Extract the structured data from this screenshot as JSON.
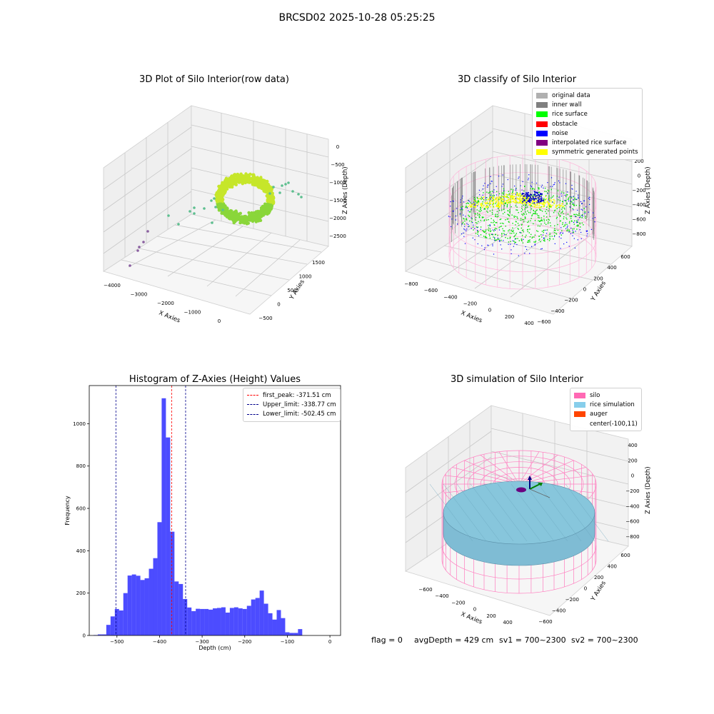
{
  "suptitle": "BRCSD02 2025-10-28 05:25:25",
  "footer": {
    "flag": "flag = 0",
    "avg_depth": "avgDepth = 429 cm",
    "sv1": "sv1 = 700~2300",
    "sv2": "sv2 = 700~2300"
  },
  "chart_data": [
    {
      "type": "scatter",
      "projection": "3d",
      "title": "3D Plot of Silo Interior(row data)",
      "xlabel": "X Axies",
      "ylabel": "Y Axies",
      "zlabel": "Z Axies (Depth)",
      "xticks": [
        "−4000",
        "−3000",
        "−2000",
        "−1000",
        "0"
      ],
      "yticks": [
        "−500",
        "0",
        "500",
        "1000",
        "1500"
      ],
      "zticks": [
        "0",
        "−500",
        "−1000",
        "−1500",
        "−2000",
        "−2500"
      ],
      "colors": {
        "ring": "#c6e62a",
        "ring_inner": "#8ad63a",
        "stray": "#5dbf8f",
        "outlier": "#8a5fa0"
      }
    },
    {
      "type": "scatter",
      "projection": "3d",
      "title": "3D classify of Silo Interior",
      "xlabel": "X Axies",
      "ylabel": "Y Axies",
      "zlabel": "Z Axies (Depth)",
      "xticks": [
        "−800",
        "−600",
        "−400",
        "−200",
        "0",
        "200",
        "400"
      ],
      "yticks": [
        "−600",
        "−400",
        "−200",
        "0",
        "200",
        "400",
        "600"
      ],
      "zticks": [
        "200",
        "0",
        "−200",
        "−400",
        "−600",
        "−800"
      ],
      "legend": [
        {
          "label": "original data",
          "color": "#b0b0b0"
        },
        {
          "label": "inner wall",
          "color": "#808080"
        },
        {
          "label": "rice surface",
          "color": "#00ff00"
        },
        {
          "label": "obstacle",
          "color": "#ff0000"
        },
        {
          "label": "noise",
          "color": "#0000ff"
        },
        {
          "label": "interpolated rice surface",
          "color": "#800080"
        },
        {
          "label": "symmetric generated points",
          "color": "#ffff00"
        }
      ],
      "legend_position": "top-right"
    },
    {
      "type": "bar",
      "title": "Histogram of Z-Axies (Height) Values",
      "xlabel": "Depth (cm)",
      "ylabel": "Frequency",
      "xlim": [
        -565,
        25
      ],
      "ylim": [
        0,
        1180
      ],
      "bin_width": 10,
      "bin_start": -555,
      "values": [
        2,
        5,
        5,
        50,
        90,
        125,
        118,
        200,
        283,
        288,
        282,
        262,
        270,
        315,
        365,
        535,
        1120,
        935,
        490,
        255,
        243,
        172,
        132,
        115,
        126,
        125,
        125,
        122,
        128,
        130,
        133,
        108,
        130,
        133,
        128,
        125,
        140,
        170,
        177,
        212,
        150,
        105,
        75,
        120,
        82,
        15,
        12,
        12,
        30
      ],
      "bar_color": "#0000ff",
      "xticks": [
        "−500",
        "−400",
        "−300",
        "−200",
        "−100",
        "0"
      ],
      "yticks": [
        "0",
        "200",
        "400",
        "600",
        "800",
        "1000"
      ],
      "ytick_values": [
        0,
        200,
        400,
        600,
        800,
        1000
      ],
      "xtick_values": [
        -500,
        -400,
        -300,
        -200,
        -100,
        0
      ],
      "vlines": [
        {
          "label": "first_peak: -371.51 cm",
          "x": -371.51,
          "color": "#ff0000"
        },
        {
          "label": "Upper_limit: -338.77 cm",
          "x": -338.77,
          "color": "#00008b"
        },
        {
          "label": "Lower_limit: -502.45 cm",
          "x": -502.45,
          "color": "#00008b"
        }
      ],
      "legend_position": "top-right"
    },
    {
      "type": "surface",
      "projection": "3d",
      "title": "3D simulation of Silo Interior",
      "xlabel": "X Axies",
      "ylabel": "Y Axies",
      "zlabel": "Z Axies (Depth)",
      "xticks": [
        "−600",
        "−400",
        "−200",
        "0",
        "200",
        "400"
      ],
      "yticks": [
        "−600",
        "−400",
        "−200",
        "0",
        "200",
        "400",
        "600"
      ],
      "zticks": [
        "400",
        "200",
        "0",
        "−200",
        "−400",
        "−600",
        "−800"
      ],
      "legend": [
        {
          "label": "silo",
          "color": "#ff69b4"
        },
        {
          "label": "rice simulation",
          "color": "#87ceeb"
        },
        {
          "label": "auger",
          "color": "#ff4500"
        },
        {
          "label": "center(-100,11)",
          "color": ""
        }
      ],
      "legend_position": "top-right"
    }
  ]
}
